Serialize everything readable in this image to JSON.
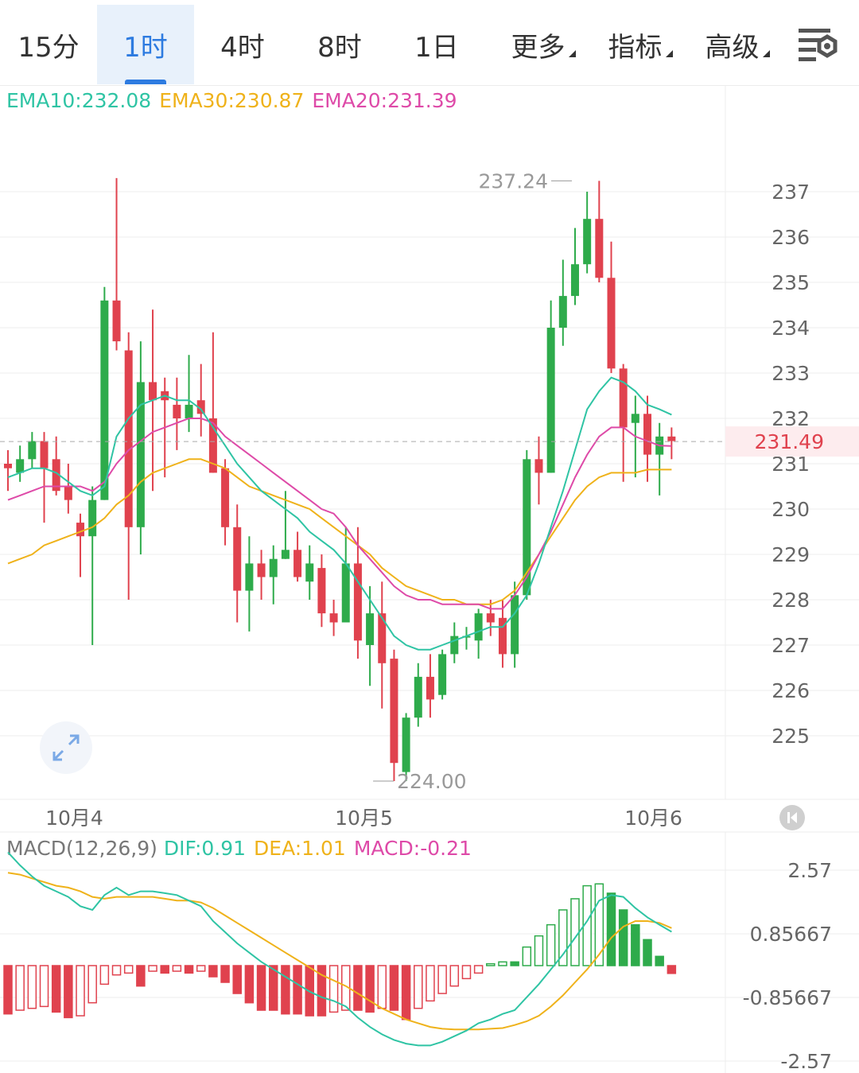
{
  "tabs": [
    {
      "label": "15分",
      "active": false,
      "dropdown": false
    },
    {
      "label": "1时",
      "active": true,
      "dropdown": false
    },
    {
      "label": "4时",
      "active": false,
      "dropdown": false
    },
    {
      "label": "8时",
      "active": false,
      "dropdown": false
    },
    {
      "label": "1日",
      "active": false,
      "dropdown": false
    },
    {
      "label": "更多",
      "active": false,
      "dropdown": true
    },
    {
      "label": "指标",
      "active": false,
      "dropdown": true
    },
    {
      "label": "高级",
      "active": false,
      "dropdown": true
    }
  ],
  "settings_icon": "chart-settings-icon",
  "expand_icon": "expand-arrows-icon",
  "back_icon": "jump-to-latest-icon",
  "ema_legend": {
    "ema10": "EMA10:232.08",
    "ema30": "EMA30:230.87",
    "ema20": "EMA20:231.39"
  },
  "macd_legend": {
    "title": "MACD(12,26,9)",
    "dif": "DIF:0.91",
    "dea": "DEA:1.01",
    "macd": "MACD:-0.21"
  },
  "colors": {
    "up": "#2eab4b",
    "down": "#e0424e",
    "ema10": "#2fc4a4",
    "ema30": "#efb21a",
    "ema20": "#de4aa8",
    "grid": "#eeeeee",
    "axis_text": "#666666",
    "price_tag_bg": "#fdecee",
    "price_tag_text": "#e0424e"
  },
  "chart_data": [
    {
      "type": "candlestick",
      "price_axis": {
        "ylim": [
          223.6,
          238.6
        ],
        "ticks": [
          "225",
          "226",
          "227",
          "228",
          "229",
          "230",
          "231",
          "232",
          "233",
          "234",
          "235",
          "236",
          "237"
        ]
      },
      "x_labels": [
        {
          "index": 5.5,
          "label": "10月4"
        },
        {
          "index": 29.5,
          "label": "10月5"
        },
        {
          "index": 53.5,
          "label": "10月6"
        }
      ],
      "last_price": "231.49",
      "high_label": {
        "index": 47,
        "value": 237.24,
        "label": "237.24"
      },
      "low_label": {
        "index": 30,
        "value": 224.0,
        "label": "224.00"
      },
      "candles": [
        [
          231.0,
          230.9,
          231.3,
          230.4
        ],
        [
          230.8,
          231.1,
          231.4,
          230.6
        ],
        [
          231.1,
          231.5,
          231.7,
          230.9
        ],
        [
          231.5,
          230.9,
          231.7,
          229.7
        ],
        [
          231.1,
          230.4,
          231.6,
          230.3
        ],
        [
          230.5,
          230.2,
          231.0,
          229.9
        ],
        [
          229.7,
          229.4,
          229.9,
          228.5
        ],
        [
          229.4,
          230.2,
          230.5,
          227.0
        ],
        [
          230.2,
          234.6,
          234.9,
          230.2
        ],
        [
          234.6,
          233.7,
          237.3,
          233.5
        ],
        [
          233.5,
          229.6,
          233.9,
          228.0
        ],
        [
          229.6,
          232.8,
          233.7,
          229.0
        ],
        [
          232.8,
          232.4,
          234.4,
          230.4
        ],
        [
          232.6,
          232.4,
          232.9,
          230.7
        ],
        [
          232.3,
          232.0,
          232.9,
          231.3
        ],
        [
          232.0,
          232.3,
          233.4,
          231.7
        ],
        [
          232.4,
          232.1,
          233.2,
          231.6
        ],
        [
          232.0,
          230.8,
          233.9,
          230.8
        ],
        [
          230.9,
          229.6,
          231.1,
          229.2
        ],
        [
          229.6,
          228.2,
          230.1,
          227.5
        ],
        [
          228.2,
          228.8,
          229.4,
          227.3
        ],
        [
          228.8,
          228.5,
          229.1,
          228.0
        ],
        [
          228.5,
          228.9,
          229.2,
          227.9
        ],
        [
          228.9,
          229.1,
          230.4,
          228.9
        ],
        [
          229.1,
          228.5,
          229.5,
          228.4
        ],
        [
          228.4,
          228.8,
          229.2,
          228.0
        ],
        [
          228.7,
          227.7,
          229.0,
          227.4
        ],
        [
          227.7,
          227.5,
          228.0,
          227.2
        ],
        [
          227.5,
          228.8,
          229.6,
          227.5
        ],
        [
          228.8,
          227.1,
          229.6,
          226.7
        ],
        [
          227.0,
          227.7,
          228.3,
          226.1
        ],
        [
          227.7,
          226.6,
          228.4,
          225.6
        ],
        [
          226.7,
          224.4,
          226.9,
          224.0
        ],
        [
          224.2,
          225.4,
          225.5,
          224.0
        ],
        [
          225.4,
          226.3,
          226.6,
          225.2
        ],
        [
          226.3,
          225.8,
          226.8,
          225.4
        ],
        [
          225.9,
          226.8,
          226.9,
          225.8
        ],
        [
          226.8,
          227.2,
          227.5,
          226.6
        ],
        [
          227.2,
          227.2,
          227.4,
          226.9
        ],
        [
          227.1,
          227.7,
          227.8,
          226.7
        ],
        [
          227.7,
          227.5,
          228.0,
          227.2
        ],
        [
          227.6,
          226.8,
          228.0,
          226.5
        ],
        [
          226.8,
          228.1,
          228.4,
          226.5
        ],
        [
          228.1,
          231.1,
          231.3,
          228.0
        ],
        [
          231.1,
          230.8,
          231.6,
          230.1
        ],
        [
          230.8,
          234.0,
          234.6,
          230.8
        ],
        [
          234.0,
          234.7,
          235.5,
          233.6
        ],
        [
          234.7,
          235.4,
          236.2,
          234.5
        ],
        [
          235.4,
          236.4,
          237.0,
          235.2
        ],
        [
          236.4,
          235.1,
          237.24,
          235.0
        ],
        [
          235.1,
          233.1,
          235.9,
          233.0
        ],
        [
          233.1,
          231.8,
          233.2,
          230.6
        ],
        [
          231.9,
          232.1,
          232.5,
          230.7
        ],
        [
          232.1,
          231.2,
          232.5,
          230.6
        ],
        [
          231.2,
          231.6,
          231.9,
          230.3
        ],
        [
          231.6,
          231.5,
          231.8,
          231.1
        ]
      ],
      "ema10": [
        230.7,
        230.8,
        230.9,
        230.9,
        230.8,
        230.6,
        230.4,
        230.3,
        230.5,
        231.6,
        232.0,
        232.3,
        232.4,
        232.5,
        232.4,
        232.4,
        232.2,
        231.8,
        231.4,
        231.0,
        230.7,
        230.4,
        230.2,
        230.0,
        229.8,
        229.5,
        229.3,
        229.1,
        228.8,
        228.4,
        228.0,
        227.6,
        227.2,
        227.0,
        226.9,
        226.9,
        227.0,
        227.1,
        227.2,
        227.3,
        227.4,
        227.4,
        227.7,
        228.1,
        228.8,
        229.6,
        230.4,
        231.3,
        232.2,
        232.6,
        232.9,
        232.8,
        232.6,
        232.3,
        232.2,
        232.08
      ],
      "ema20": [
        230.2,
        230.3,
        230.4,
        230.5,
        230.5,
        230.5,
        230.5,
        230.4,
        230.6,
        231.0,
        231.3,
        231.5,
        231.7,
        231.8,
        231.9,
        232.0,
        232.0,
        231.9,
        231.6,
        231.4,
        231.2,
        231.0,
        230.8,
        230.6,
        230.4,
        230.2,
        230.0,
        229.9,
        229.6,
        229.2,
        228.9,
        228.6,
        228.3,
        228.1,
        228.0,
        228.0,
        227.9,
        227.9,
        227.9,
        227.9,
        227.8,
        227.8,
        228.1,
        228.5,
        229.0,
        229.5,
        230.1,
        230.7,
        231.2,
        231.6,
        231.8,
        231.8,
        231.6,
        231.5,
        231.4,
        231.39
      ],
      "ema30": [
        228.8,
        228.9,
        229.0,
        229.2,
        229.3,
        229.4,
        229.5,
        229.6,
        229.8,
        230.1,
        230.3,
        230.6,
        230.8,
        230.9,
        231.0,
        231.1,
        231.1,
        231.0,
        230.9,
        230.7,
        230.5,
        230.4,
        230.3,
        230.2,
        230.1,
        230.0,
        229.8,
        229.6,
        229.4,
        229.2,
        229.0,
        228.7,
        228.5,
        228.3,
        228.2,
        228.1,
        228.0,
        228.0,
        227.9,
        227.9,
        227.9,
        228.0,
        228.2,
        228.6,
        229.0,
        229.4,
        229.8,
        230.2,
        230.5,
        230.7,
        230.8,
        230.8,
        230.8,
        230.87,
        230.87,
        230.87
      ]
    },
    {
      "type": "macd",
      "ylim": [
        -2.57,
        2.57
      ],
      "ticks": [
        "2.57",
        "0.85667",
        "-0.85667",
        "-2.57"
      ],
      "dif": [
        3.05,
        2.7,
        2.4,
        2.15,
        2.0,
        1.85,
        1.6,
        1.5,
        1.9,
        2.1,
        1.9,
        2.0,
        2.0,
        1.95,
        1.9,
        1.75,
        1.6,
        1.2,
        0.9,
        0.6,
        0.35,
        0.1,
        -0.1,
        -0.3,
        -0.5,
        -0.7,
        -0.85,
        -0.95,
        -1.1,
        -1.4,
        -1.65,
        -1.85,
        -2.0,
        -2.1,
        -2.15,
        -2.15,
        -2.05,
        -1.9,
        -1.75,
        -1.55,
        -1.45,
        -1.3,
        -1.2,
        -0.85,
        -0.5,
        -0.1,
        0.3,
        0.75,
        1.2,
        1.75,
        1.9,
        1.85,
        1.55,
        1.3,
        1.1,
        0.91
      ],
      "dea": [
        2.5,
        2.45,
        2.35,
        2.25,
        2.15,
        2.1,
        2.0,
        1.85,
        1.8,
        1.85,
        1.85,
        1.85,
        1.85,
        1.8,
        1.75,
        1.75,
        1.7,
        1.55,
        1.35,
        1.15,
        0.95,
        0.75,
        0.55,
        0.35,
        0.15,
        -0.05,
        -0.25,
        -0.4,
        -0.55,
        -0.75,
        -0.95,
        -1.15,
        -1.3,
        -1.45,
        -1.55,
        -1.65,
        -1.7,
        -1.72,
        -1.72,
        -1.72,
        -1.7,
        -1.68,
        -1.6,
        -1.5,
        -1.35,
        -1.1,
        -0.8,
        -0.45,
        -0.1,
        0.3,
        0.75,
        1.05,
        1.2,
        1.2,
        1.15,
        1.01
      ],
      "hist": [
        -1.3,
        -1.2,
        -1.15,
        -1.1,
        -1.25,
        -1.4,
        -1.35,
        -1.0,
        -0.5,
        -0.25,
        -0.2,
        -0.55,
        -0.15,
        -0.2,
        -0.15,
        -0.2,
        -0.15,
        -0.3,
        -0.45,
        -0.75,
        -1.0,
        -1.2,
        -1.2,
        -1.3,
        -1.3,
        -1.35,
        -1.35,
        -1.25,
        -1.2,
        -1.2,
        -1.25,
        -1.15,
        -1.2,
        -1.45,
        -1.15,
        -0.95,
        -0.75,
        -0.55,
        -0.35,
        -0.2,
        0.05,
        0.1,
        0.1,
        0.5,
        0.8,
        1.1,
        1.5,
        1.8,
        2.15,
        2.2,
        1.95,
        1.5,
        1.1,
        0.7,
        0.25,
        -0.21
      ]
    }
  ]
}
